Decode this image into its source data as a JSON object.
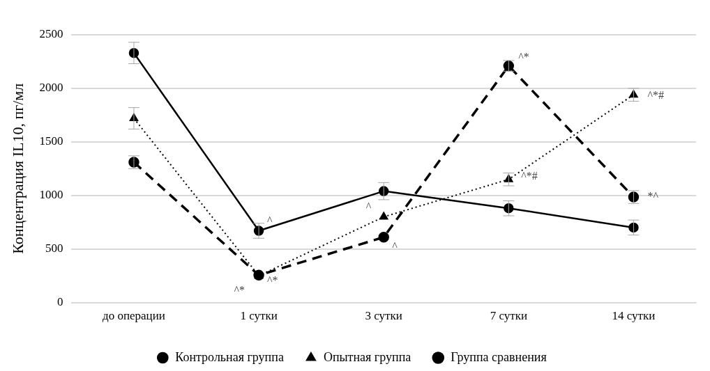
{
  "chart_data": {
    "type": "line",
    "ylabel": "Концентрация IL10, пг/мл",
    "categories": [
      "до операции",
      "1 сутки",
      "3 сутки",
      "7 сутки",
      "14 сутки"
    ],
    "series": [
      {
        "name": "Контрольная группа",
        "color": "#000000",
        "values": [
          2330,
          670,
          1040,
          880,
          700
        ],
        "errors": [
          100,
          70,
          80,
          70,
          70
        ],
        "marker": "circle",
        "line_style": "solid"
      },
      {
        "name": "Опытная группа",
        "color": "#000000",
        "values": [
          1720,
          250,
          800,
          1150,
          1940
        ],
        "errors": [
          100,
          null,
          null,
          60,
          60
        ],
        "marker": "triangle",
        "line_style": "dotted"
      },
      {
        "name": "Группа сравнения",
        "color": "#000000",
        "values": [
          1310,
          255,
          610,
          2210,
          985
        ],
        "errors": [
          60,
          null,
          null,
          50,
          60
        ],
        "marker": "circle",
        "line_style": "dashed"
      }
    ],
    "ylim": [
      0,
      2500
    ],
    "yticks": [
      0,
      500,
      1000,
      1500,
      2000,
      2500
    ],
    "grid": "y",
    "legend": "bottom",
    "annotations": [
      {
        "text": "^",
        "x": "1 сутки",
        "y": 670
      },
      {
        "text": "^*",
        "x": "1 сутки",
        "y": 250
      },
      {
        "text": "^*",
        "x": "1 сутки",
        "y": 255
      },
      {
        "text": "^",
        "x": "3 сутки",
        "y": 800
      },
      {
        "text": "^",
        "x": "3 сутки",
        "y": 610
      },
      {
        "text": "^*",
        "x": "7 сутки",
        "y": 2210
      },
      {
        "text": "^*#",
        "x": "7 сутки",
        "y": 1150
      },
      {
        "text": "^*#",
        "x": "14 сутки",
        "y": 1940
      },
      {
        "text": "*^",
        "x": "14 сутки",
        "y": 985
      }
    ]
  }
}
